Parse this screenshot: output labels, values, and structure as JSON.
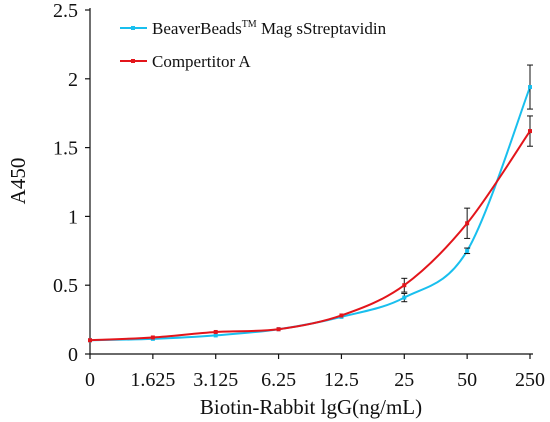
{
  "chart_data": {
    "type": "line",
    "categories": [
      "0",
      "1.625",
      "3.125",
      "6.25",
      "12.5",
      "25",
      "50",
      "250"
    ],
    "xlabel": "Biotin-Rabbit lgG(ng/mL)",
    "ylabel": "A450",
    "ylim": [
      0,
      2.5
    ],
    "yticks": [
      "0",
      "0.5",
      "1",
      "1.5",
      "2",
      "2.5"
    ],
    "grid": false,
    "legend_position": "top-left",
    "series": [
      {
        "name": "BeaverBeads",
        "name_superscript": "TM",
        "name_suffix": " Mag sStreptavidin",
        "color": "#19bfee",
        "values": [
          0.1,
          0.11,
          0.135,
          0.18,
          0.27,
          0.41,
          0.75,
          1.94
        ],
        "errors": [
          0.005,
          0.005,
          0.005,
          0.005,
          0.005,
          0.03,
          0.02,
          0.16
        ]
      },
      {
        "name": "Compertitor A",
        "color": "#e3151b",
        "values": [
          0.1,
          0.12,
          0.16,
          0.18,
          0.28,
          0.5,
          0.95,
          1.62
        ],
        "errors": [
          0.005,
          0.005,
          0.005,
          0.005,
          0.005,
          0.05,
          0.11,
          0.11
        ]
      }
    ]
  }
}
